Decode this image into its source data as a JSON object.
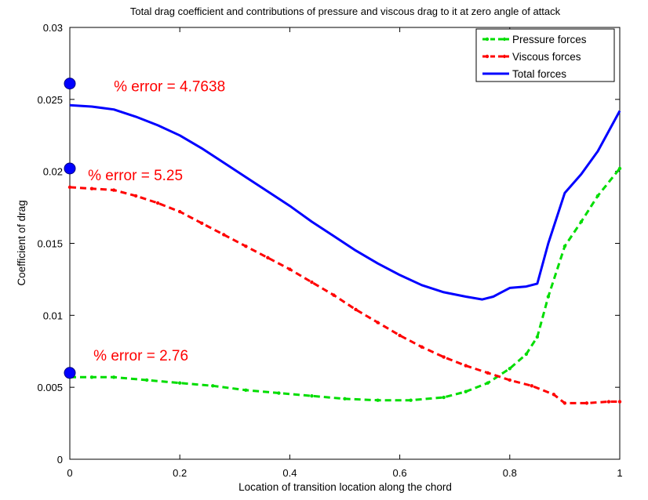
{
  "chart_data": {
    "type": "line",
    "title": "Total drag coefficient and contributions of pressure and viscous drag to it at zero angle of attack",
    "xlabel": "Location of transition location along the chord",
    "ylabel": "Coefficient of drag",
    "xlim": [
      0,
      1
    ],
    "ylim": [
      0,
      0.03
    ],
    "xticks": [
      "0",
      "0.2",
      "0.4",
      "0.6",
      "0.8",
      "1"
    ],
    "xtick_values": [
      0,
      0.2,
      0.4,
      0.6,
      0.8,
      1
    ],
    "yticks": [
      "0",
      "0.005",
      "0.01",
      "0.015",
      "0.02",
      "0.025",
      "0.03"
    ],
    "ytick_values": [
      0,
      0.005,
      0.01,
      0.015,
      0.02,
      0.025,
      0.03
    ],
    "grid": false,
    "legend_position": "top-right",
    "series": [
      {
        "name": "Pressure forces",
        "color": "#00dd00",
        "style": "dashed-dots",
        "x": [
          0,
          0.04,
          0.08,
          0.14,
          0.2,
          0.26,
          0.32,
          0.38,
          0.44,
          0.5,
          0.56,
          0.62,
          0.68,
          0.72,
          0.76,
          0.8,
          0.83,
          0.85,
          0.87,
          0.9,
          0.93,
          0.96,
          1.0
        ],
        "y": [
          0.0057,
          0.0057,
          0.0057,
          0.0055,
          0.0053,
          0.0051,
          0.0048,
          0.0046,
          0.0044,
          0.0042,
          0.0041,
          0.0041,
          0.0043,
          0.0047,
          0.0053,
          0.0063,
          0.0073,
          0.0085,
          0.0113,
          0.0148,
          0.0165,
          0.0183,
          0.0202
        ]
      },
      {
        "name": "Viscous forces",
        "color": "#ff0000",
        "style": "dashed-dots",
        "x": [
          0,
          0.04,
          0.08,
          0.12,
          0.16,
          0.2,
          0.24,
          0.28,
          0.32,
          0.36,
          0.4,
          0.44,
          0.48,
          0.52,
          0.56,
          0.6,
          0.64,
          0.68,
          0.72,
          0.76,
          0.8,
          0.84,
          0.88,
          0.9,
          0.94,
          0.98,
          1.0
        ],
        "y": [
          0.0189,
          0.0188,
          0.0187,
          0.0183,
          0.0178,
          0.0172,
          0.0164,
          0.0156,
          0.0148,
          0.014,
          0.0132,
          0.0123,
          0.0114,
          0.0104,
          0.0095,
          0.0086,
          0.0078,
          0.0071,
          0.0065,
          0.006,
          0.0055,
          0.0051,
          0.0045,
          0.0039,
          0.0039,
          0.004,
          0.004
        ]
      },
      {
        "name": "Total forces",
        "color": "#0000ff",
        "style": "solid",
        "x": [
          0,
          0.04,
          0.08,
          0.12,
          0.16,
          0.2,
          0.24,
          0.28,
          0.32,
          0.36,
          0.4,
          0.44,
          0.48,
          0.52,
          0.56,
          0.6,
          0.64,
          0.68,
          0.72,
          0.75,
          0.77,
          0.8,
          0.83,
          0.85,
          0.87,
          0.9,
          0.93,
          0.96,
          1.0
        ],
        "y": [
          0.0246,
          0.0245,
          0.0243,
          0.0238,
          0.0232,
          0.0225,
          0.0216,
          0.0206,
          0.0196,
          0.0186,
          0.0176,
          0.0165,
          0.0155,
          0.0145,
          0.0136,
          0.0128,
          0.0121,
          0.0116,
          0.0113,
          0.0111,
          0.0113,
          0.0119,
          0.012,
          0.0122,
          0.015,
          0.0185,
          0.0198,
          0.0214,
          0.0242
        ]
      }
    ],
    "reference_markers": {
      "color": "#0000ff",
      "x": [
        0,
        0,
        0
      ],
      "y": [
        0.0261,
        0.0202,
        0.006
      ]
    },
    "annotations": [
      {
        "text": "% error = 4.7638",
        "x": 0.08,
        "y": 0.0259,
        "color": "#ff0000"
      },
      {
        "text": "% error = 5.25",
        "x": 0.033,
        "y": 0.0197,
        "color": "#ff0000"
      },
      {
        "text": "% error = 2.76",
        "x": 0.043,
        "y": 0.0072,
        "color": "#ff0000"
      }
    ]
  }
}
